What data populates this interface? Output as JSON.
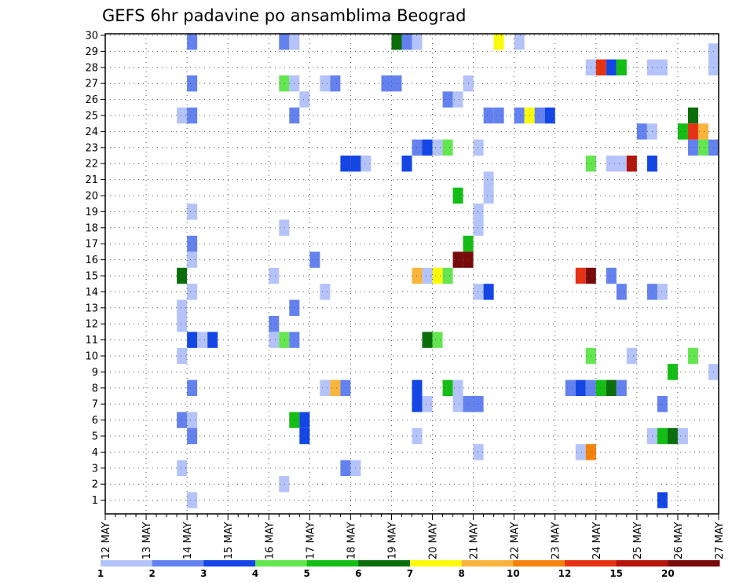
{
  "chart_data": {
    "type": "heatmap",
    "title": "GEFS 6hr padavine po ansamblima Beograd",
    "xlabel": "",
    "ylabel": "",
    "y_tick_labels": [
      "1",
      "2",
      "3",
      "4",
      "5",
      "6",
      "7",
      "8",
      "9",
      "10",
      "11",
      "12",
      "13",
      "14",
      "15",
      "16",
      "17",
      "18",
      "19",
      "20",
      "21",
      "22",
      "23",
      "24",
      "25",
      "26",
      "27",
      "28",
      "29",
      "30"
    ],
    "ylim": [
      0,
      30
    ],
    "x_tick_labels": [
      "12 MAY",
      "13 MAY",
      "14 MAY",
      "15 MAY",
      "16 MAY",
      "17 MAY",
      "18 MAY",
      "19 MAY",
      "20 MAY",
      "21 MAY",
      "22 MAY",
      "23 MAY",
      "24 MAY",
      "25 MAY",
      "26 MAY",
      "27 MAY"
    ],
    "x_unit": "6-hour step (4 steps per day, starting 12 MAY 00z)",
    "grid": true,
    "colorbar": {
      "tick_labels": [
        "1",
        "2",
        "3",
        "4",
        "5",
        "6",
        "7",
        "8",
        "10",
        "12",
        "15",
        "20"
      ],
      "colors": [
        "#b4c3fa",
        "#6482ef",
        "#1446e6",
        "#64e650",
        "#14be14",
        "#0a6e0a",
        "#fafa0a",
        "#fab43c",
        "#f5820a",
        "#e63214",
        "#b4140a",
        "#780a0a"
      ]
    },
    "cells": [
      {
        "t": 8,
        "m": 30,
        "v": 1.5
      },
      {
        "t": 17,
        "m": 30,
        "v": 1.5
      },
      {
        "t": 18,
        "m": 30,
        "v": 0.5
      },
      {
        "t": 28,
        "m": 30,
        "v": 5.5
      },
      {
        "t": 29,
        "m": 30,
        "v": 1.5
      },
      {
        "t": 30,
        "m": 30,
        "v": 0.5
      },
      {
        "t": 38,
        "m": 30,
        "v": 6.5
      },
      {
        "t": 40,
        "m": 30,
        "v": 0.5
      },
      {
        "t": 59,
        "m": 29,
        "v": 0.5
      },
      {
        "t": 47,
        "m": 28,
        "v": 0.5
      },
      {
        "t": 48,
        "m": 28,
        "v": 10.5
      },
      {
        "t": 49,
        "m": 28,
        "v": 2.5
      },
      {
        "t": 50,
        "m": 28,
        "v": 4.5
      },
      {
        "t": 53,
        "m": 28,
        "v": 0.5
      },
      {
        "t": 54,
        "m": 28,
        "v": 0.5
      },
      {
        "t": 59,
        "m": 28,
        "v": 0.5
      },
      {
        "t": 8,
        "m": 27,
        "v": 1.5
      },
      {
        "t": 17,
        "m": 27,
        "v": 3.5
      },
      {
        "t": 18,
        "m": 27,
        "v": 0.5
      },
      {
        "t": 21,
        "m": 27,
        "v": 0.5
      },
      {
        "t": 22,
        "m": 27,
        "v": 1.5
      },
      {
        "t": 27,
        "m": 27,
        "v": 1.5
      },
      {
        "t": 28,
        "m": 27,
        "v": 1.5
      },
      {
        "t": 35,
        "m": 27,
        "v": 0.5
      },
      {
        "t": 19,
        "m": 26,
        "v": 0.5
      },
      {
        "t": 33,
        "m": 26,
        "v": 1.5
      },
      {
        "t": 34,
        "m": 26,
        "v": 0.5
      },
      {
        "t": 7,
        "m": 25,
        "v": 0.5
      },
      {
        "t": 8,
        "m": 25,
        "v": 1.5
      },
      {
        "t": 18,
        "m": 25,
        "v": 1.5
      },
      {
        "t": 37,
        "m": 25,
        "v": 1.5
      },
      {
        "t": 38,
        "m": 25,
        "v": 1.5
      },
      {
        "t": 40,
        "m": 25,
        "v": 1.5
      },
      {
        "t": 41,
        "m": 25,
        "v": 6.5
      },
      {
        "t": 42,
        "m": 25,
        "v": 1.5
      },
      {
        "t": 43,
        "m": 25,
        "v": 2.5
      },
      {
        "t": 57,
        "m": 25,
        "v": 5.5
      },
      {
        "t": 52,
        "m": 24,
        "v": 1.5
      },
      {
        "t": 53,
        "m": 24,
        "v": 0.5
      },
      {
        "t": 56,
        "m": 24,
        "v": 4.5
      },
      {
        "t": 57,
        "m": 24,
        "v": 11
      },
      {
        "t": 58,
        "m": 24,
        "v": 7.5
      },
      {
        "t": 30,
        "m": 23,
        "v": 1.5
      },
      {
        "t": 31,
        "m": 23,
        "v": 2.5
      },
      {
        "t": 32,
        "m": 23,
        "v": 0.5
      },
      {
        "t": 33,
        "m": 23,
        "v": 3.5
      },
      {
        "t": 36,
        "m": 23,
        "v": 0.5
      },
      {
        "t": 57,
        "m": 23,
        "v": 1.5
      },
      {
        "t": 58,
        "m": 23,
        "v": 3.5
      },
      {
        "t": 59,
        "m": 23,
        "v": 1.5
      },
      {
        "t": 23,
        "m": 22,
        "v": 2.5
      },
      {
        "t": 24,
        "m": 22,
        "v": 2.5
      },
      {
        "t": 25,
        "m": 22,
        "v": 0.5
      },
      {
        "t": 29,
        "m": 22,
        "v": 2.5
      },
      {
        "t": 47,
        "m": 22,
        "v": 3.5
      },
      {
        "t": 49,
        "m": 22,
        "v": 0.5
      },
      {
        "t": 50,
        "m": 22,
        "v": 0.5
      },
      {
        "t": 51,
        "m": 22,
        "v": 13
      },
      {
        "t": 53,
        "m": 22,
        "v": 2.5
      },
      {
        "t": 37,
        "m": 21,
        "v": 0.5
      },
      {
        "t": 37,
        "m": 20,
        "v": 0.5
      },
      {
        "t": 34,
        "m": 20,
        "v": 4.5
      },
      {
        "t": 8,
        "m": 19,
        "v": 0.5
      },
      {
        "t": 36,
        "m": 19,
        "v": 0.5
      },
      {
        "t": 17,
        "m": 18,
        "v": 0.5
      },
      {
        "t": 36,
        "m": 18,
        "v": 0.5
      },
      {
        "t": 35,
        "m": 17,
        "v": 4.5
      },
      {
        "t": 8,
        "m": 17,
        "v": 1.5
      },
      {
        "t": 8,
        "m": 16,
        "v": 0.5
      },
      {
        "t": 20,
        "m": 16,
        "v": 1.5
      },
      {
        "t": 34,
        "m": 16,
        "v": 17
      },
      {
        "t": 35,
        "m": 16,
        "v": 22
      },
      {
        "t": 7,
        "m": 15,
        "v": 5.5
      },
      {
        "t": 16,
        "m": 15,
        "v": 0.5
      },
      {
        "t": 30,
        "m": 15,
        "v": 7.5
      },
      {
        "t": 31,
        "m": 15,
        "v": 0.5
      },
      {
        "t": 32,
        "m": 15,
        "v": 6.5
      },
      {
        "t": 33,
        "m": 15,
        "v": 3.5
      },
      {
        "t": 46,
        "m": 15,
        "v": 11
      },
      {
        "t": 47,
        "m": 15,
        "v": 22
      },
      {
        "t": 49,
        "m": 15,
        "v": 1.5
      },
      {
        "t": 8,
        "m": 14,
        "v": 0.5
      },
      {
        "t": 21,
        "m": 14,
        "v": 0.5
      },
      {
        "t": 36,
        "m": 14,
        "v": 0.5
      },
      {
        "t": 37,
        "m": 14,
        "v": 2.5
      },
      {
        "t": 50,
        "m": 14,
        "v": 1.5
      },
      {
        "t": 53,
        "m": 14,
        "v": 1.5
      },
      {
        "t": 54,
        "m": 14,
        "v": 0.5
      },
      {
        "t": 18,
        "m": 13,
        "v": 1.5
      },
      {
        "t": 7,
        "m": 13,
        "v": 0.5
      },
      {
        "t": 7,
        "m": 12,
        "v": 0.5
      },
      {
        "t": 16,
        "m": 12,
        "v": 1.5
      },
      {
        "t": 8,
        "m": 11,
        "v": 2.5
      },
      {
        "t": 9,
        "m": 11,
        "v": 0.5
      },
      {
        "t": 10,
        "m": 11,
        "v": 2.5
      },
      {
        "t": 16,
        "m": 11,
        "v": 0.5
      },
      {
        "t": 17,
        "m": 11,
        "v": 3.5
      },
      {
        "t": 18,
        "m": 11,
        "v": 1.5
      },
      {
        "t": 31,
        "m": 11,
        "v": 5.5
      },
      {
        "t": 32,
        "m": 11,
        "v": 3.5
      },
      {
        "t": 7,
        "m": 10,
        "v": 0.5
      },
      {
        "t": 47,
        "m": 10,
        "v": 3.5
      },
      {
        "t": 51,
        "m": 10,
        "v": 0.5
      },
      {
        "t": 57,
        "m": 10,
        "v": 3.5
      },
      {
        "t": 55,
        "m": 9,
        "v": 4.5
      },
      {
        "t": 59,
        "m": 9,
        "v": 0.5
      },
      {
        "t": 8,
        "m": 8,
        "v": 1.5
      },
      {
        "t": 21,
        "m": 8,
        "v": 0.5
      },
      {
        "t": 22,
        "m": 8,
        "v": 7.5
      },
      {
        "t": 23,
        "m": 8,
        "v": 1.5
      },
      {
        "t": 30,
        "m": 8,
        "v": 2.5
      },
      {
        "t": 33,
        "m": 8,
        "v": 4.5
      },
      {
        "t": 34,
        "m": 8,
        "v": 0.5
      },
      {
        "t": 45,
        "m": 8,
        "v": 1.5
      },
      {
        "t": 46,
        "m": 8,
        "v": 2.5
      },
      {
        "t": 47,
        "m": 8,
        "v": 1.5
      },
      {
        "t": 48,
        "m": 8,
        "v": 4.5
      },
      {
        "t": 49,
        "m": 8,
        "v": 5.5
      },
      {
        "t": 50,
        "m": 8,
        "v": 1.5
      },
      {
        "t": 30,
        "m": 7,
        "v": 2.5
      },
      {
        "t": 31,
        "m": 7,
        "v": 0.5
      },
      {
        "t": 34,
        "m": 7,
        "v": 0.5
      },
      {
        "t": 35,
        "m": 7,
        "v": 1.5
      },
      {
        "t": 36,
        "m": 7,
        "v": 1.5
      },
      {
        "t": 54,
        "m": 7,
        "v": 1.5
      },
      {
        "t": 7,
        "m": 6,
        "v": 1.5
      },
      {
        "t": 8,
        "m": 6,
        "v": 0.5
      },
      {
        "t": 18,
        "m": 6,
        "v": 4.5
      },
      {
        "t": 19,
        "m": 6,
        "v": 2.5
      },
      {
        "t": 8,
        "m": 5,
        "v": 1.5
      },
      {
        "t": 19,
        "m": 5,
        "v": 2.5
      },
      {
        "t": 30,
        "m": 5,
        "v": 0.5
      },
      {
        "t": 53,
        "m": 5,
        "v": 0.5
      },
      {
        "t": 54,
        "m": 5,
        "v": 4.5
      },
      {
        "t": 55,
        "m": 5,
        "v": 5.5
      },
      {
        "t": 56,
        "m": 5,
        "v": 0.5
      },
      {
        "t": 36,
        "m": 4,
        "v": 0.5
      },
      {
        "t": 46,
        "m": 4,
        "v": 0.5
      },
      {
        "t": 47,
        "m": 4,
        "v": 9
      },
      {
        "t": 7,
        "m": 3,
        "v": 0.5
      },
      {
        "t": 23,
        "m": 3,
        "v": 1.5
      },
      {
        "t": 24,
        "m": 3,
        "v": 0.5
      },
      {
        "t": 17,
        "m": 2,
        "v": 0.5
      },
      {
        "t": 8,
        "m": 1,
        "v": 0.5
      },
      {
        "t": 54,
        "m": 1,
        "v": 2.5
      }
    ]
  }
}
